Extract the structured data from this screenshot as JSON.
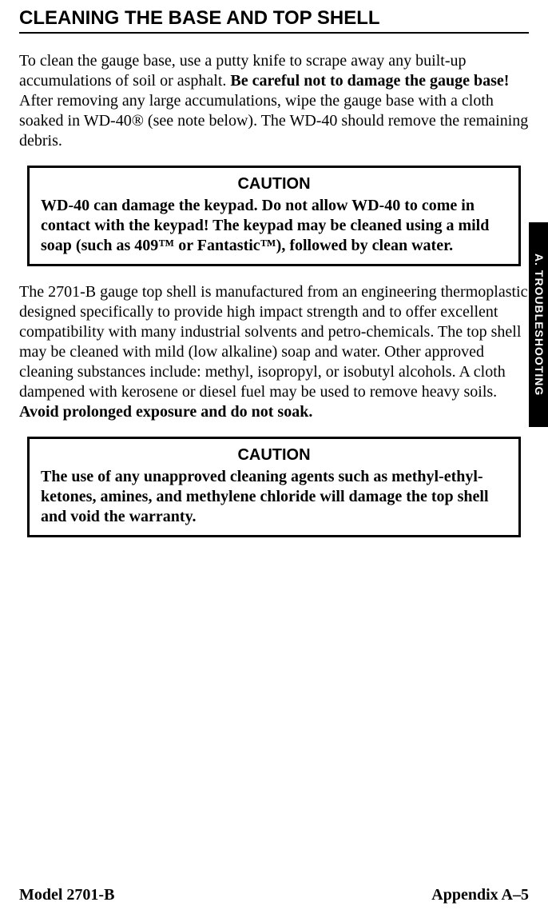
{
  "heading": "CLEANING THE BASE AND TOP SHELL",
  "para1_a": "To clean the gauge base, use a putty knife to scrape away any built-up accumulations of soil or asphalt. ",
  "para1_b": "Be careful not to damage the gauge base!",
  "para1_c": " After removing any large accumulations, wipe the gauge base with a cloth soaked in WD-40® (see note below). The WD-40 should remove the remaining debris.",
  "caution1_title": "CAUTION",
  "caution1_a": "WD-40 can damage the keypad. Do not allow WD-40 to come in contact with the keypad! The keypad may be cleaned using a mild soap (such as 409",
  "caution1_tm1": "™",
  "caution1_b": " or Fantastic",
  "caution1_tm2": "™",
  "caution1_c": "), followed by clean water.",
  "para2_a": "The 2701-B gauge top shell is manufactured from an engineering thermoplastic designed specifically to provide high impact strength and to offer excellent compatibility with many industrial solvents and petro-chemicals. The top shell may be cleaned with mild (low alkaline) soap and water. Other approved cleaning substances include: methyl, isopropyl, or isobutyl alcohols. A cloth dampened with kerosene or diesel fuel may be used to remove heavy soils. ",
  "para2_b": "Avoid prolonged exposure and do not soak.",
  "caution2_title": "CAUTION",
  "caution2_body": "The use of any unapproved cleaning agents such as methyl-ethyl-ketones, amines, and methylene chloride will damage the top shell and void the warranty.",
  "side_tab": "A. TROUBLESHOOTING",
  "footer_left": "Model 2701-B",
  "footer_right": "Appendix A–5"
}
